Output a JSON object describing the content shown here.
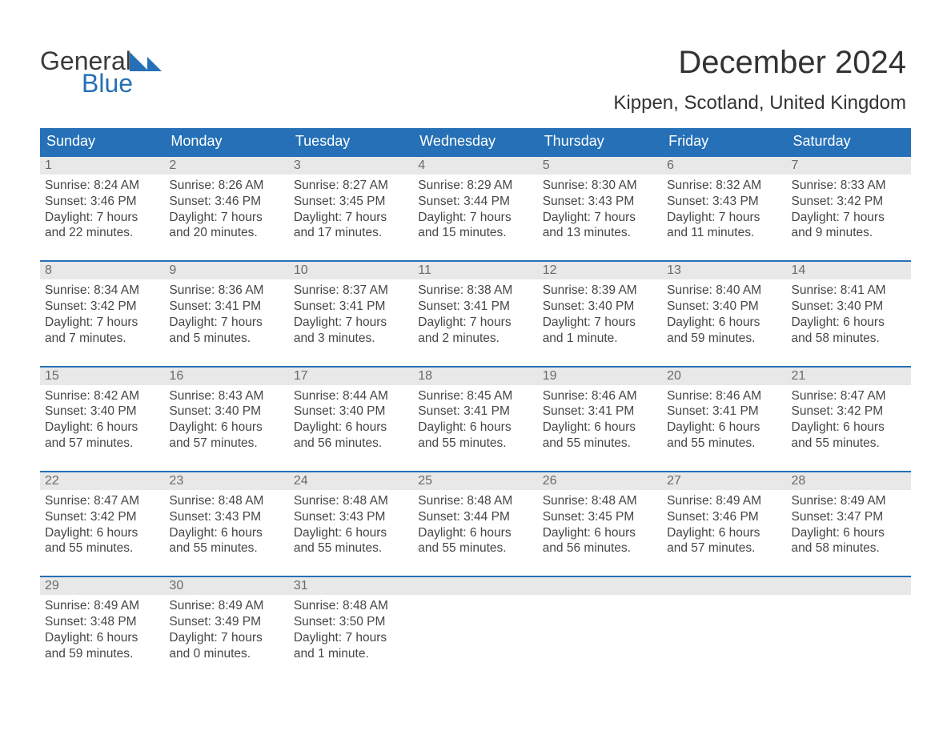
{
  "colors": {
    "brand_blue": "#2570b6",
    "header_bg": "#2570b6",
    "header_text": "#ffffff",
    "daynum_bg": "#e8e8e8",
    "daynum_text": "#6a6a6a",
    "body_text": "#464646",
    "page_bg": "#ffffff",
    "rule": "#2570b6"
  },
  "typography": {
    "title_fontsize": 40,
    "subtitle_fontsize": 24,
    "header_fontsize": 18,
    "body_fontsize": 15.5
  },
  "logo": {
    "line1": "General",
    "line2": "Blue"
  },
  "title": {
    "month": "December 2024",
    "location": "Kippen, Scotland, United Kingdom"
  },
  "day_headers": [
    "Sunday",
    "Monday",
    "Tuesday",
    "Wednesday",
    "Thursday",
    "Friday",
    "Saturday"
  ],
  "weeks": [
    [
      {
        "n": "1",
        "sr": "Sunrise: 8:24 AM",
        "ss": "Sunset: 3:46 PM",
        "d1": "Daylight: 7 hours",
        "d2": "and 22 minutes."
      },
      {
        "n": "2",
        "sr": "Sunrise: 8:26 AM",
        "ss": "Sunset: 3:46 PM",
        "d1": "Daylight: 7 hours",
        "d2": "and 20 minutes."
      },
      {
        "n": "3",
        "sr": "Sunrise: 8:27 AM",
        "ss": "Sunset: 3:45 PM",
        "d1": "Daylight: 7 hours",
        "d2": "and 17 minutes."
      },
      {
        "n": "4",
        "sr": "Sunrise: 8:29 AM",
        "ss": "Sunset: 3:44 PM",
        "d1": "Daylight: 7 hours",
        "d2": "and 15 minutes."
      },
      {
        "n": "5",
        "sr": "Sunrise: 8:30 AM",
        "ss": "Sunset: 3:43 PM",
        "d1": "Daylight: 7 hours",
        "d2": "and 13 minutes."
      },
      {
        "n": "6",
        "sr": "Sunrise: 8:32 AM",
        "ss": "Sunset: 3:43 PM",
        "d1": "Daylight: 7 hours",
        "d2": "and 11 minutes."
      },
      {
        "n": "7",
        "sr": "Sunrise: 8:33 AM",
        "ss": "Sunset: 3:42 PM",
        "d1": "Daylight: 7 hours",
        "d2": "and 9 minutes."
      }
    ],
    [
      {
        "n": "8",
        "sr": "Sunrise: 8:34 AM",
        "ss": "Sunset: 3:42 PM",
        "d1": "Daylight: 7 hours",
        "d2": "and 7 minutes."
      },
      {
        "n": "9",
        "sr": "Sunrise: 8:36 AM",
        "ss": "Sunset: 3:41 PM",
        "d1": "Daylight: 7 hours",
        "d2": "and 5 minutes."
      },
      {
        "n": "10",
        "sr": "Sunrise: 8:37 AM",
        "ss": "Sunset: 3:41 PM",
        "d1": "Daylight: 7 hours",
        "d2": "and 3 minutes."
      },
      {
        "n": "11",
        "sr": "Sunrise: 8:38 AM",
        "ss": "Sunset: 3:41 PM",
        "d1": "Daylight: 7 hours",
        "d2": "and 2 minutes."
      },
      {
        "n": "12",
        "sr": "Sunrise: 8:39 AM",
        "ss": "Sunset: 3:40 PM",
        "d1": "Daylight: 7 hours",
        "d2": "and 1 minute."
      },
      {
        "n": "13",
        "sr": "Sunrise: 8:40 AM",
        "ss": "Sunset: 3:40 PM",
        "d1": "Daylight: 6 hours",
        "d2": "and 59 minutes."
      },
      {
        "n": "14",
        "sr": "Sunrise: 8:41 AM",
        "ss": "Sunset: 3:40 PM",
        "d1": "Daylight: 6 hours",
        "d2": "and 58 minutes."
      }
    ],
    [
      {
        "n": "15",
        "sr": "Sunrise: 8:42 AM",
        "ss": "Sunset: 3:40 PM",
        "d1": "Daylight: 6 hours",
        "d2": "and 57 minutes."
      },
      {
        "n": "16",
        "sr": "Sunrise: 8:43 AM",
        "ss": "Sunset: 3:40 PM",
        "d1": "Daylight: 6 hours",
        "d2": "and 57 minutes."
      },
      {
        "n": "17",
        "sr": "Sunrise: 8:44 AM",
        "ss": "Sunset: 3:40 PM",
        "d1": "Daylight: 6 hours",
        "d2": "and 56 minutes."
      },
      {
        "n": "18",
        "sr": "Sunrise: 8:45 AM",
        "ss": "Sunset: 3:41 PM",
        "d1": "Daylight: 6 hours",
        "d2": "and 55 minutes."
      },
      {
        "n": "19",
        "sr": "Sunrise: 8:46 AM",
        "ss": "Sunset: 3:41 PM",
        "d1": "Daylight: 6 hours",
        "d2": "and 55 minutes."
      },
      {
        "n": "20",
        "sr": "Sunrise: 8:46 AM",
        "ss": "Sunset: 3:41 PM",
        "d1": "Daylight: 6 hours",
        "d2": "and 55 minutes."
      },
      {
        "n": "21",
        "sr": "Sunrise: 8:47 AM",
        "ss": "Sunset: 3:42 PM",
        "d1": "Daylight: 6 hours",
        "d2": "and 55 minutes."
      }
    ],
    [
      {
        "n": "22",
        "sr": "Sunrise: 8:47 AM",
        "ss": "Sunset: 3:42 PM",
        "d1": "Daylight: 6 hours",
        "d2": "and 55 minutes."
      },
      {
        "n": "23",
        "sr": "Sunrise: 8:48 AM",
        "ss": "Sunset: 3:43 PM",
        "d1": "Daylight: 6 hours",
        "d2": "and 55 minutes."
      },
      {
        "n": "24",
        "sr": "Sunrise: 8:48 AM",
        "ss": "Sunset: 3:43 PM",
        "d1": "Daylight: 6 hours",
        "d2": "and 55 minutes."
      },
      {
        "n": "25",
        "sr": "Sunrise: 8:48 AM",
        "ss": "Sunset: 3:44 PM",
        "d1": "Daylight: 6 hours",
        "d2": "and 55 minutes."
      },
      {
        "n": "26",
        "sr": "Sunrise: 8:48 AM",
        "ss": "Sunset: 3:45 PM",
        "d1": "Daylight: 6 hours",
        "d2": "and 56 minutes."
      },
      {
        "n": "27",
        "sr": "Sunrise: 8:49 AM",
        "ss": "Sunset: 3:46 PM",
        "d1": "Daylight: 6 hours",
        "d2": "and 57 minutes."
      },
      {
        "n": "28",
        "sr": "Sunrise: 8:49 AM",
        "ss": "Sunset: 3:47 PM",
        "d1": "Daylight: 6 hours",
        "d2": "and 58 minutes."
      }
    ],
    [
      {
        "n": "29",
        "sr": "Sunrise: 8:49 AM",
        "ss": "Sunset: 3:48 PM",
        "d1": "Daylight: 6 hours",
        "d2": "and 59 minutes."
      },
      {
        "n": "30",
        "sr": "Sunrise: 8:49 AM",
        "ss": "Sunset: 3:49 PM",
        "d1": "Daylight: 7 hours",
        "d2": "and 0 minutes."
      },
      {
        "n": "31",
        "sr": "Sunrise: 8:48 AM",
        "ss": "Sunset: 3:50 PM",
        "d1": "Daylight: 7 hours",
        "d2": "and 1 minute."
      },
      null,
      null,
      null,
      null
    ]
  ]
}
